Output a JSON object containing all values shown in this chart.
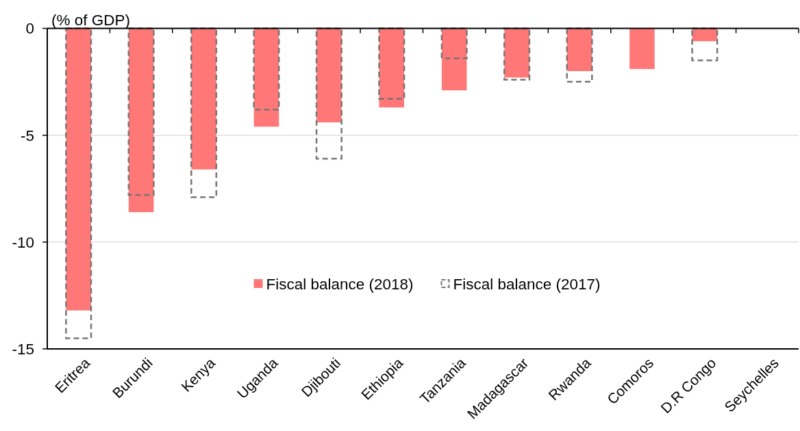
{
  "chart_data": {
    "type": "bar",
    "ylabel": "(% of GDP)",
    "categories": [
      "Eritrea",
      "Burundi",
      "Kenya",
      "Uganda",
      "Djibouti",
      "Ethiopia",
      "Tanzania",
      "Madagascar",
      "Rwanda",
      "Comoros",
      "D.R Congo",
      "Seychelles"
    ],
    "series": [
      {
        "name": "Fiscal balance (2018)",
        "color": "#ff7777",
        "values": [
          -13.2,
          -8.6,
          -6.6,
          -4.6,
          -4.4,
          -3.7,
          -2.9,
          -2.3,
          -2.0,
          -1.9,
          -0.6,
          0
        ]
      },
      {
        "name": "Fiscal balance (2017)",
        "color": "#767676",
        "line_style": "dashed",
        "values": [
          -14.5,
          -7.8,
          -7.9,
          -3.8,
          -6.1,
          -3.3,
          -1.4,
          -2.4,
          -2.5,
          null,
          -1.5,
          0
        ]
      }
    ],
    "ylim": [
      -15,
      0
    ],
    "yticks": [
      0,
      -5,
      -10,
      -15
    ],
    "grid": "y",
    "legend": "bottom"
  }
}
